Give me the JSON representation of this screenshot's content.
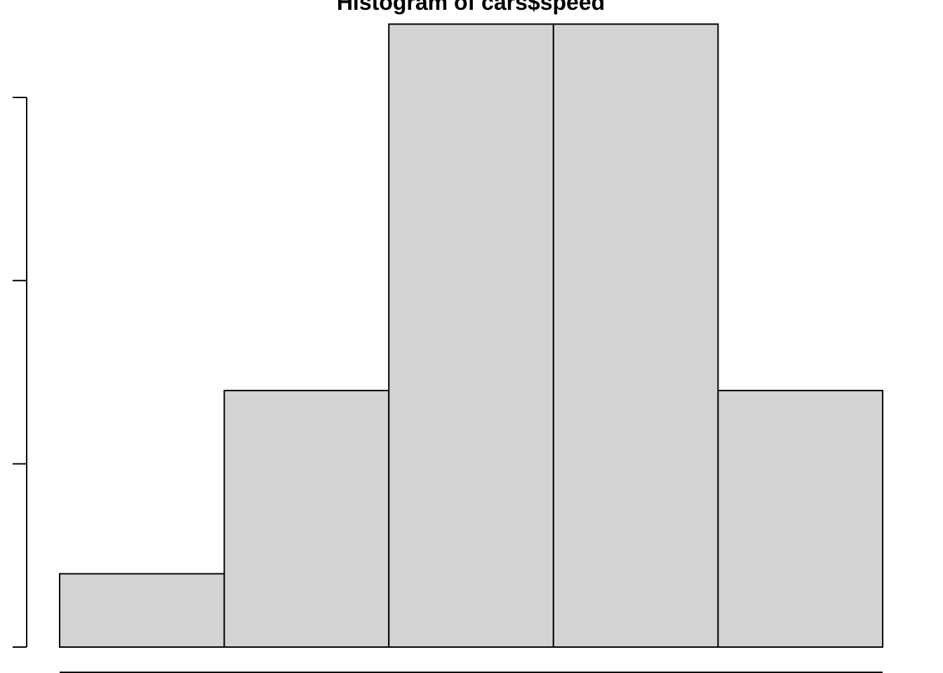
{
  "chart_data": {
    "type": "bar",
    "title": "Histogram of cars$speed",
    "xlabel": "",
    "ylabel": "",
    "x_bins": [
      [
        0,
        5
      ],
      [
        5,
        10
      ],
      [
        10,
        15
      ],
      [
        15,
        20
      ],
      [
        20,
        25
      ]
    ],
    "values": [
      2,
      7,
      17,
      17,
      7
    ],
    "xlim": [
      0,
      25
    ],
    "ylim": [
      0,
      15
    ],
    "y_ticks": [
      0,
      5,
      10,
      15
    ],
    "bar_fill": "#d3d3d3",
    "bar_stroke": "#000000",
    "grid": false,
    "legend": "none"
  }
}
